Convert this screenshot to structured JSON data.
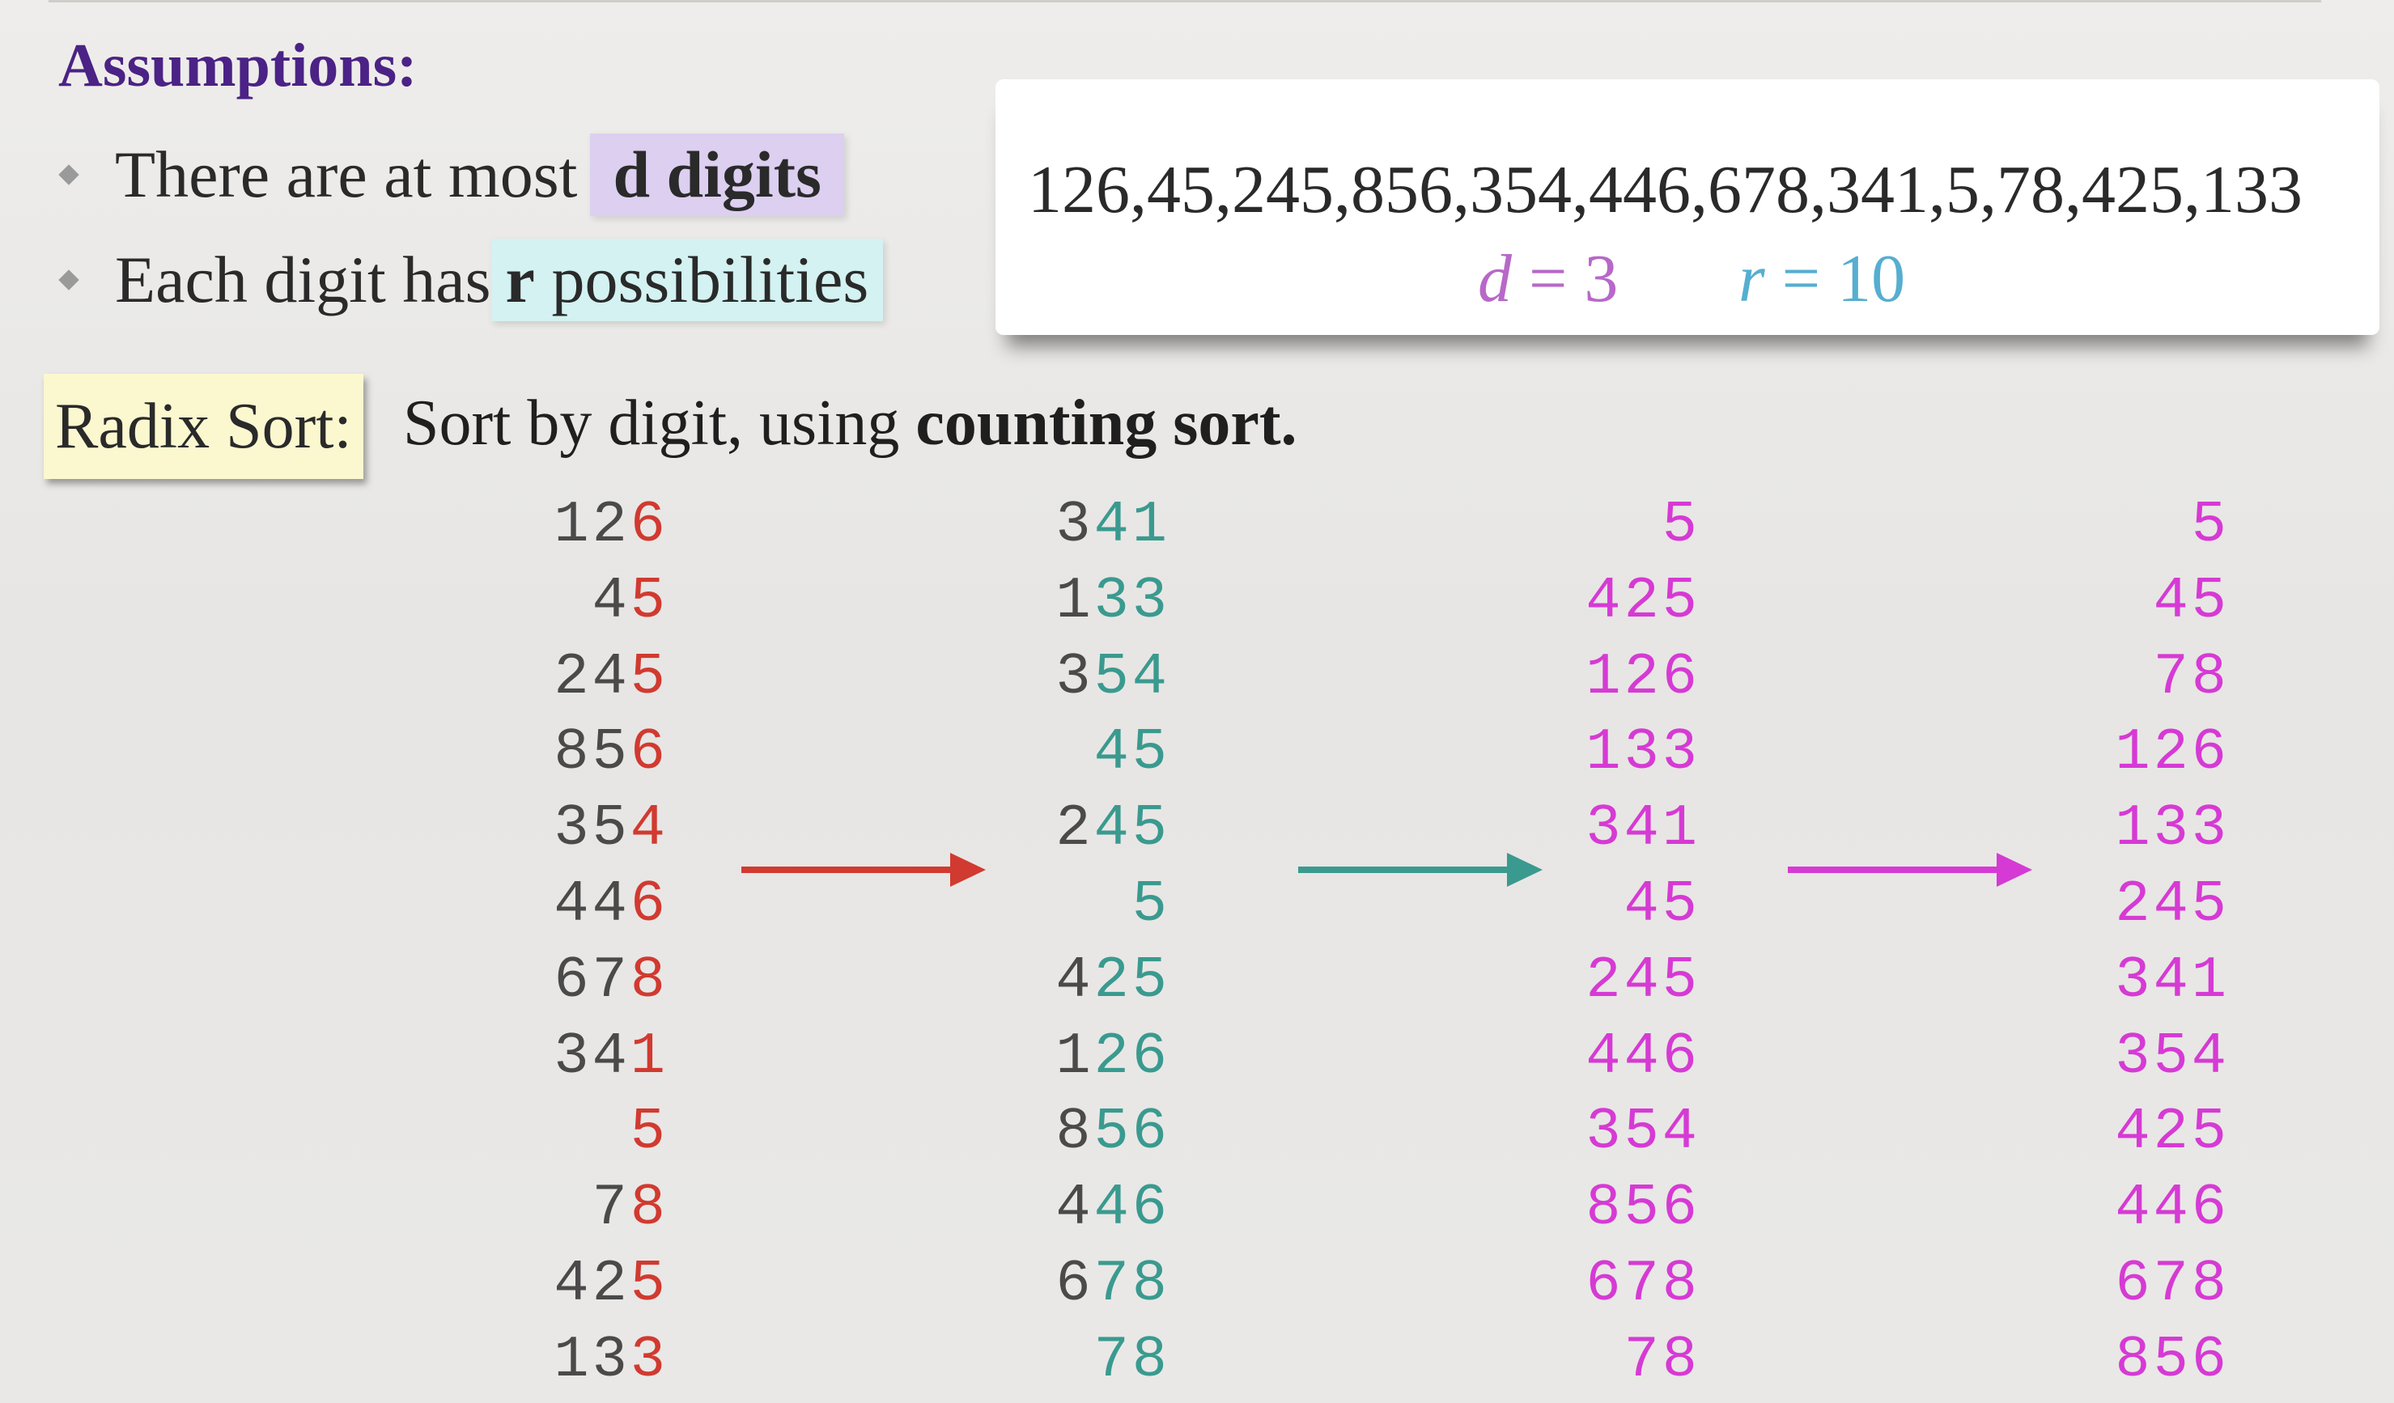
{
  "assumptions": {
    "title": "Assumptions:",
    "bullet1_text": "There are at most",
    "bullet1_highlight": "d digits",
    "bullet2_text": "Each digit has",
    "bullet2_highlight_bold": "r",
    "bullet2_highlight_rest": "possibilities"
  },
  "example": {
    "sequence": "126,45,245,856,354,446,678,341,5,78,425,133",
    "d_var": "d",
    "d_eq": "= 3",
    "r_var": "r",
    "r_eq": "= 10"
  },
  "radix": {
    "label": "Radix Sort:",
    "desc": "Sort by digit, using",
    "desc_bold": "counting sort."
  },
  "colors": {
    "gray": "#4a4a4a",
    "red": "#d13a30",
    "teal": "#3a9a8f",
    "magenta": "#d63ad4",
    "title_purple": "#4b2285"
  },
  "columns": [
    [
      "126",
      "45",
      "245",
      "856",
      "354",
      "446",
      "678",
      "341",
      "5",
      "78",
      "425",
      "133"
    ],
    [
      "341",
      "133",
      "354",
      "45",
      "245",
      "5",
      "425",
      "126",
      "856",
      "446",
      "678",
      "78"
    ],
    [
      "5",
      "425",
      "126",
      "133",
      "341",
      "45",
      "245",
      "446",
      "354",
      "856",
      "678",
      "78"
    ],
    [
      "5",
      "45",
      "78",
      "126",
      "133",
      "245",
      "341",
      "354",
      "425",
      "446",
      "678",
      "856"
    ]
  ],
  "arrows": [
    {
      "color": "#d13a30"
    },
    {
      "color": "#3a9a8f"
    },
    {
      "color": "#d63ad4"
    }
  ]
}
